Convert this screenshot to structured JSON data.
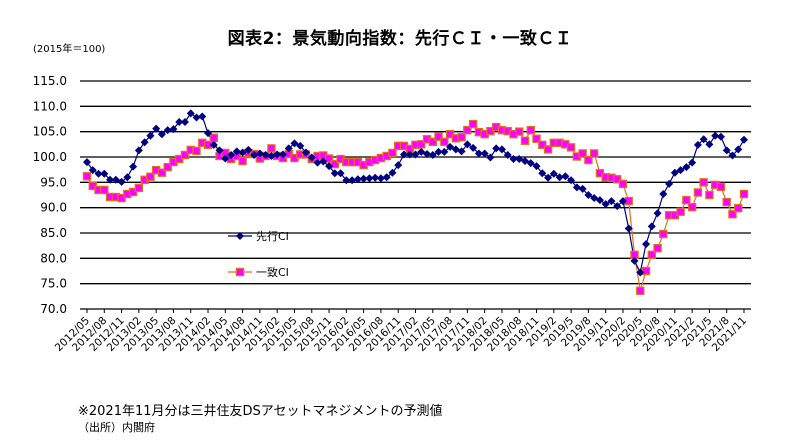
{
  "chart_data": {
    "type": "line",
    "title": "図表2：景気動向指数：先行ＣＩ・一致ＣＩ",
    "unit_label": "(2015年＝100)",
    "xlabel": "",
    "ylabel": "",
    "ylim": [
      70,
      115
    ],
    "y_ticks": [
      "70.0",
      "75.0",
      "80.0",
      "85.0",
      "90.0",
      "95.0",
      "100.0",
      "105.0",
      "110.0",
      "115.0"
    ],
    "grid": true,
    "x_range": [
      "2012/05",
      "2021/11"
    ],
    "x_tick_labels": [
      "2012/05",
      "2012/08",
      "2012/11",
      "2013/02",
      "2013/05",
      "2013/08",
      "2013/11",
      "2014/02",
      "2014/05",
      "2014/08",
      "2014/11",
      "2015/02",
      "2015/05",
      "2015/08",
      "2015/11",
      "2016/02",
      "2016/05",
      "2016/08",
      "2016/11",
      "2017/02",
      "2017/05",
      "2017/08",
      "2017/11",
      "2018/02",
      "2018/05",
      "2018/08",
      "2018/11",
      "2019/2",
      "2019/5",
      "2019/8",
      "2019/11",
      "2020/2",
      "2020/5",
      "2020/8",
      "2020/11",
      "2021/2",
      "2021/5",
      "2021/8",
      "2021/11"
    ],
    "series": [
      {
        "name": "先行CI",
        "color": "#000080",
        "marker": "diamond",
        "values": [
          99.0,
          97.4,
          96.7,
          96.7,
          95.5,
          95.5,
          95.1,
          96.0,
          98.1,
          101.3,
          102.9,
          104.2,
          105.6,
          104.5,
          105.3,
          105.5,
          106.9,
          106.9,
          108.6,
          107.8,
          108.0,
          104.7,
          102.4,
          101.3,
          99.7,
          100.4,
          101.1,
          100.9,
          101.4,
          100.4,
          100.7,
          100.4,
          100.2,
          100.5,
          100.5,
          101.7,
          102.7,
          102.2,
          100.9,
          99.9,
          98.9,
          99.1,
          98.2,
          96.8,
          96.8,
          95.4,
          95.4,
          95.6,
          95.7,
          95.8,
          95.9,
          95.8,
          96.0,
          96.9,
          98.4,
          100.5,
          100.5,
          100.5,
          101.0,
          100.6,
          100.4,
          101.0,
          101.0,
          102.0,
          101.5,
          101.1,
          102.5,
          101.8,
          100.7,
          100.7,
          99.9,
          101.7,
          101.5,
          100.4,
          99.6,
          99.6,
          99.2,
          98.8,
          98.2,
          96.8,
          95.9,
          96.7,
          96.0,
          96.2,
          95.4,
          94.0,
          93.7,
          92.5,
          91.9,
          91.5,
          90.7,
          91.3,
          90.3,
          91.3,
          85.9,
          79.5,
          77.2,
          82.8,
          86.3,
          88.9,
          92.7,
          94.7,
          96.9,
          97.4,
          98.0,
          98.9,
          102.4,
          103.5,
          102.5,
          104.2,
          104.0,
          101.3,
          100.3,
          101.5,
          103.4
        ]
      },
      {
        "name": "一致CI",
        "color": "#E0701E",
        "marker_fill": "#FF00FF",
        "marker": "square",
        "values": [
          96.2,
          94.3,
          93.5,
          93.5,
          92.1,
          92.1,
          91.9,
          92.7,
          93.1,
          93.9,
          95.5,
          96.1,
          97.4,
          96.9,
          98.0,
          99.0,
          99.6,
          100.4,
          101.4,
          101.2,
          102.8,
          102.4,
          103.8,
          100.2,
          100.8,
          99.6,
          100.2,
          99.2,
          100.8,
          100.6,
          99.7,
          100.2,
          101.7,
          100.2,
          99.8,
          100.6,
          99.8,
          100.5,
          100.5,
          99.6,
          100.2,
          100.3,
          99.7,
          98.6,
          99.6,
          99.0,
          99.0,
          99.0,
          98.4,
          99.0,
          99.4,
          99.8,
          100.2,
          100.8,
          102.2,
          102.2,
          101.6,
          102.4,
          102.5,
          103.5,
          103.0,
          104.0,
          103.0,
          104.5,
          103.7,
          103.9,
          105.3,
          106.5,
          104.9,
          104.5,
          105.1,
          105.9,
          105.3,
          105.1,
          104.5,
          105.0,
          103.2,
          105.3,
          103.6,
          102.4,
          101.5,
          102.8,
          102.8,
          102.5,
          101.9,
          100.1,
          100.7,
          99.4,
          100.7,
          96.8,
          96.0,
          95.9,
          95.6,
          94.7,
          91.3,
          80.7,
          73.6,
          77.5,
          80.7,
          82.0,
          84.8,
          88.5,
          88.5,
          89.2,
          91.5,
          90.1,
          93.0,
          95.0,
          92.5,
          94.5,
          94.1,
          91.1,
          88.7,
          89.9,
          92.7
        ]
      }
    ],
    "legend": "inside-left-middle",
    "note": "※2021年11月分は三井住友DSアセットマネジメントの予測値",
    "source": "（出所）内閣府"
  }
}
